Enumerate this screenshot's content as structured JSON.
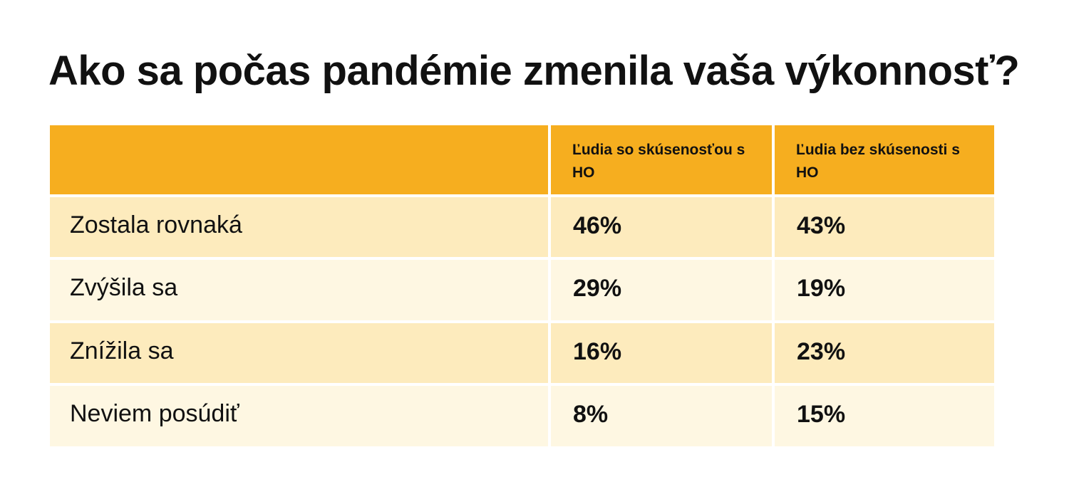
{
  "chart_data": {
    "type": "table",
    "title": "Ako sa počas pandémie zmenila vaša výkonnosť?",
    "columns": [
      "",
      "Ľudia so skúsenosťou s HO",
      "Ľudia bez skúsenosti s HO"
    ],
    "rows": [
      {
        "label": "Zostala rovnaká",
        "values": [
          "46%",
          "43%"
        ]
      },
      {
        "label": "Zvýšila sa",
        "values": [
          "29%",
          "19%"
        ]
      },
      {
        "label": "Znížila sa",
        "values": [
          "16%",
          "23%"
        ]
      },
      {
        "label": "Neviem posúdiť",
        "values": [
          "8%",
          "15%"
        ]
      }
    ],
    "colors": {
      "header": "#f6ae1f",
      "row_odd": "#fdebbd",
      "row_even": "#fef7e2"
    }
  }
}
